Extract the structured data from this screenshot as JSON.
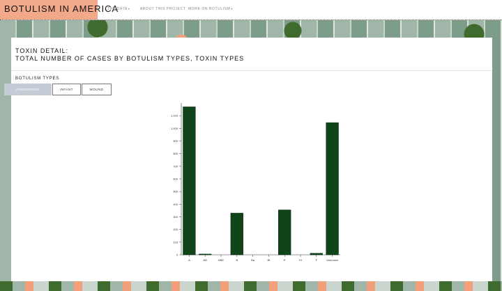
{
  "nav": {
    "brand": "BOTULISM IN AMERICA",
    "items": [
      {
        "label": "THE DATA",
        "dropdown": true
      },
      {
        "label": "ABOUT THIS PROJECT",
        "dropdown": false
      },
      {
        "label": "MORE ON BOTULISM",
        "dropdown": true
      }
    ]
  },
  "page": {
    "title_line1": "TOXIN DETAIL:",
    "title_line2": "TOTAL NUMBER OF CASES BY BOTULISM TYPES, TOXIN TYPES",
    "section_label": "BOTULISM TYPES",
    "tabs": [
      {
        "label": "FOODBORNE",
        "active": true
      },
      {
        "label": "INFANT",
        "active": false
      },
      {
        "label": "WOUND",
        "active": false
      }
    ]
  },
  "colors": {
    "bar": "#10451a",
    "brand_bg": "#f2a98a",
    "tab_active": "#c4cdd6"
  },
  "chart_data": {
    "type": "bar",
    "categories": [
      "A",
      "AB",
      "ABE",
      "B",
      "Ba",
      "Bf",
      "E",
      "Ef",
      "F",
      "Unknown"
    ],
    "values": [
      1170,
      6,
      0,
      330,
      0,
      0,
      355,
      0,
      12,
      1045
    ],
    "y_ticks": [
      "0",
      "100",
      "200",
      "300",
      "400",
      "500",
      "600",
      "700",
      "800",
      "900",
      "1,000",
      "1,100"
    ],
    "ylim": [
      0,
      1200
    ],
    "title": "",
    "xlabel": "",
    "ylabel": "",
    "grid": false
  }
}
